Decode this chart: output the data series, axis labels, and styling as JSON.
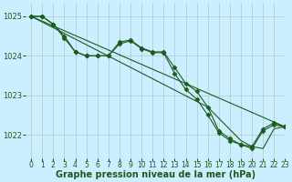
{
  "background_color": "#cceeff",
  "grid_color": "#aacccc",
  "line_color": "#1a5c1a",
  "series": [
    {
      "x": [
        0,
        1,
        2,
        3,
        4,
        5,
        6,
        7,
        8,
        9,
        10,
        11,
        12,
        13,
        14,
        15,
        16,
        17,
        18,
        19,
        20,
        21,
        22,
        23
      ],
      "y": [
        1025.0,
        1025.0,
        1024.8,
        1024.5,
        1024.1,
        1024.0,
        1024.0,
        1024.0,
        1024.35,
        1024.4,
        1024.2,
        1024.1,
        1024.1,
        1023.7,
        1023.3,
        1023.1,
        1022.7,
        1022.1,
        1021.9,
        1021.75,
        1021.7,
        1022.15,
        1022.3,
        1022.2
      ]
    },
    {
      "x": [
        0,
        1,
        2,
        3,
        4,
        5,
        6,
        7,
        8,
        9,
        10,
        11,
        12,
        13,
        14,
        15,
        16,
        17,
        18,
        19,
        20,
        21,
        22,
        23
      ],
      "y": [
        1025.0,
        1025.0,
        1024.8,
        1024.45,
        1024.1,
        1024.0,
        1024.0,
        1024.0,
        1024.3,
        1024.38,
        1024.18,
        1024.08,
        1024.08,
        1023.55,
        1023.15,
        1022.9,
        1022.5,
        1022.05,
        1021.85,
        1021.75,
        1021.65,
        1022.1,
        1022.25,
        1022.2
      ]
    },
    {
      "x": [
        0,
        23
      ],
      "y": [
        1025.0,
        1022.2
      ]
    },
    {
      "x": [
        0,
        16,
        19,
        20,
        21,
        22,
        23
      ],
      "y": [
        1025.0,
        1022.7,
        1021.85,
        1021.7,
        1021.65,
        1022.15,
        1022.2
      ]
    }
  ],
  "xlim": [
    -0.5,
    23
  ],
  "ylim": [
    1021.4,
    1025.35
  ],
  "xticks": [
    0,
    1,
    2,
    3,
    4,
    5,
    6,
    7,
    8,
    9,
    10,
    11,
    12,
    13,
    14,
    15,
    16,
    17,
    18,
    19,
    20,
    21,
    22,
    23
  ],
  "yticks": [
    1022,
    1023,
    1024,
    1025
  ],
  "xlabel": "Graphe pression niveau de la mer (hPa)",
  "xlabel_fontsize": 7,
  "tick_fontsize": 5.5,
  "marker": "D",
  "markersize": 2.5,
  "linewidth": 0.8
}
